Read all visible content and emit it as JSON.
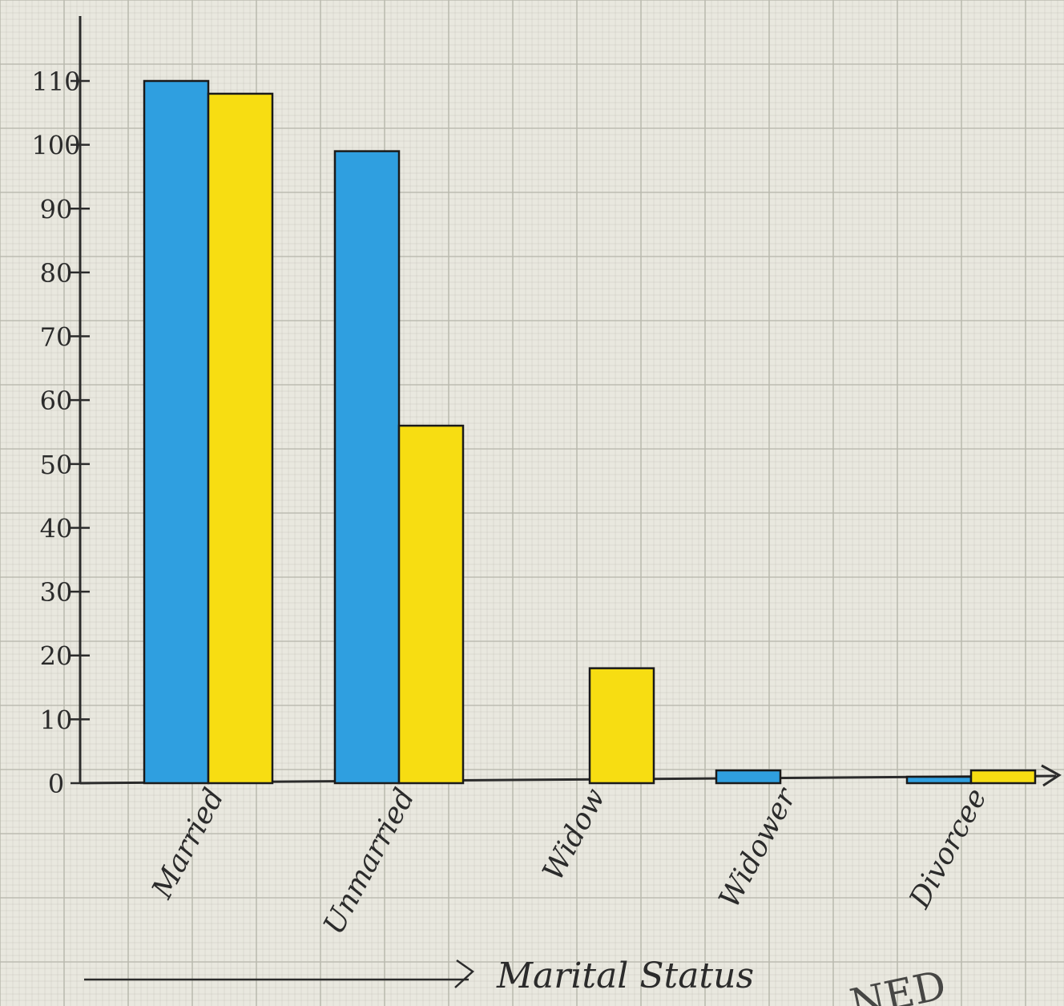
{
  "chart_data": {
    "type": "bar",
    "title": "",
    "xlabel": "Marital Status",
    "ylabel": "",
    "categories": [
      "Married",
      "Unmarried",
      "Widow",
      "Widower",
      "Divorcee"
    ],
    "series": [
      {
        "values": [
          110,
          99,
          0,
          2,
          1
        ]
      },
      {
        "values": [
          108,
          56,
          18,
          0,
          2
        ]
      }
    ],
    "ylim": [
      0,
      110
    ],
    "yticks": [
      "0",
      "10",
      "20",
      "30",
      "40",
      "50",
      "60",
      "70",
      "80",
      "90",
      "100",
      "110"
    ],
    "grid": true,
    "colors": {
      "series1": "#2f9fe0",
      "series2": "#f7dd12",
      "grid": "#b8b8ad",
      "ink": "#2b2b2b",
      "paper": "#e9e8df"
    },
    "watermark": "NED"
  }
}
